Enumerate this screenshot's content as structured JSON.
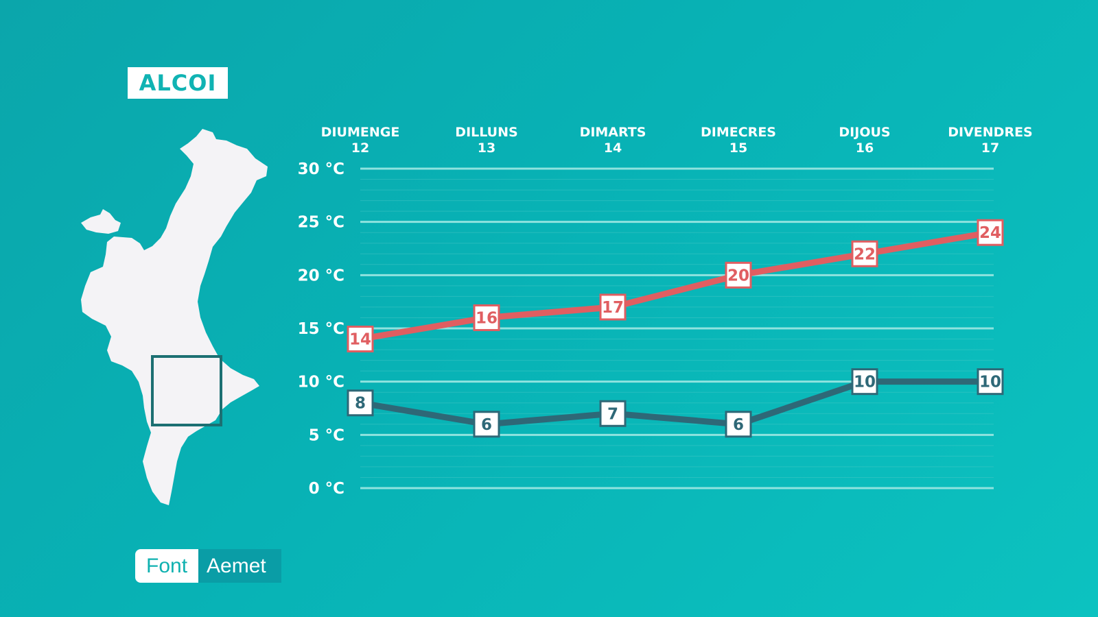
{
  "header": {
    "title": "ALCOI"
  },
  "source": {
    "label": "Font",
    "value": "Aemet"
  },
  "map": {
    "icon": "valencia-region-map"
  },
  "chart_data": {
    "type": "line",
    "title": "",
    "xlabel": "",
    "ylabel": "",
    "categories": [
      {
        "day": "DIUMENGE",
        "date": "12"
      },
      {
        "day": "DILLUNS",
        "date": "13"
      },
      {
        "day": "DIMARTS",
        "date": "14"
      },
      {
        "day": "DIMECRES",
        "date": "15"
      },
      {
        "day": "DIJOUS",
        "date": "16"
      },
      {
        "day": "DIVENDRES",
        "date": "17"
      }
    ],
    "yticks": [
      "0 °C",
      "5 °C",
      "10 °C",
      "15 °C",
      "20 °C",
      "25 °C",
      "30 °C"
    ],
    "ylim": [
      0,
      30
    ],
    "grid": true,
    "series": [
      {
        "key": "max",
        "values": [
          14,
          16,
          17,
          20,
          22,
          24
        ],
        "color": "#e05e61"
      },
      {
        "key": "min",
        "values": [
          8,
          6,
          7,
          6,
          10,
          10
        ],
        "color": "#2e6877"
      }
    ]
  }
}
